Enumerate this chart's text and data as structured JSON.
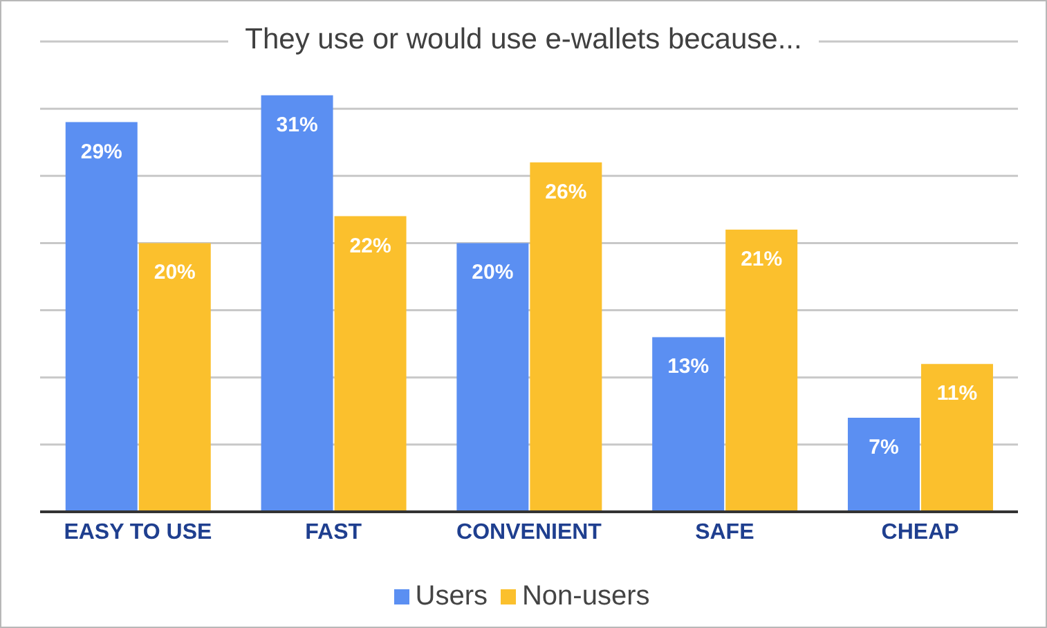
{
  "chart_data": {
    "type": "bar",
    "title": "They use or would use e-wallets because...",
    "categories": [
      "EASY TO USE",
      "FAST",
      "CONVENIENT",
      "SAFE",
      "CHEAP"
    ],
    "series": [
      {
        "name": "Users",
        "color": "#5b8ff2",
        "values": [
          29,
          31,
          20,
          13,
          7
        ],
        "value_labels": [
          "29%",
          "31%",
          "20%",
          "13%",
          "7%"
        ]
      },
      {
        "name": "Non-users",
        "color": "#fbc02d",
        "values": [
          20,
          22,
          26,
          21,
          11
        ],
        "value_labels": [
          "20%",
          "22%",
          "26%",
          "21%",
          "11%"
        ]
      }
    ],
    "ylim": [
      0,
      35
    ],
    "tick_labels": "x",
    "grid": "y",
    "legend": "bottom"
  }
}
